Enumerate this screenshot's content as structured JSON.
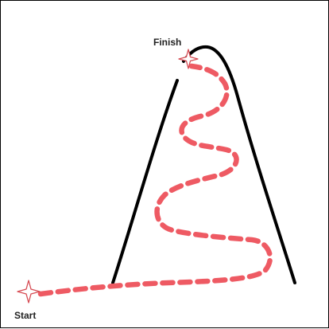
{
  "labels": {
    "start": "Start",
    "finish": "Finish"
  },
  "icons": {
    "start_marker": "four-point-star-icon",
    "finish_marker": "four-point-star-icon"
  },
  "colors": {
    "background": "#ffffff",
    "border": "#000000",
    "mountain_outline": "#000000",
    "path": "#ee5a63",
    "star_stroke": "#d64a52",
    "star_fill": "#ffffff"
  }
}
